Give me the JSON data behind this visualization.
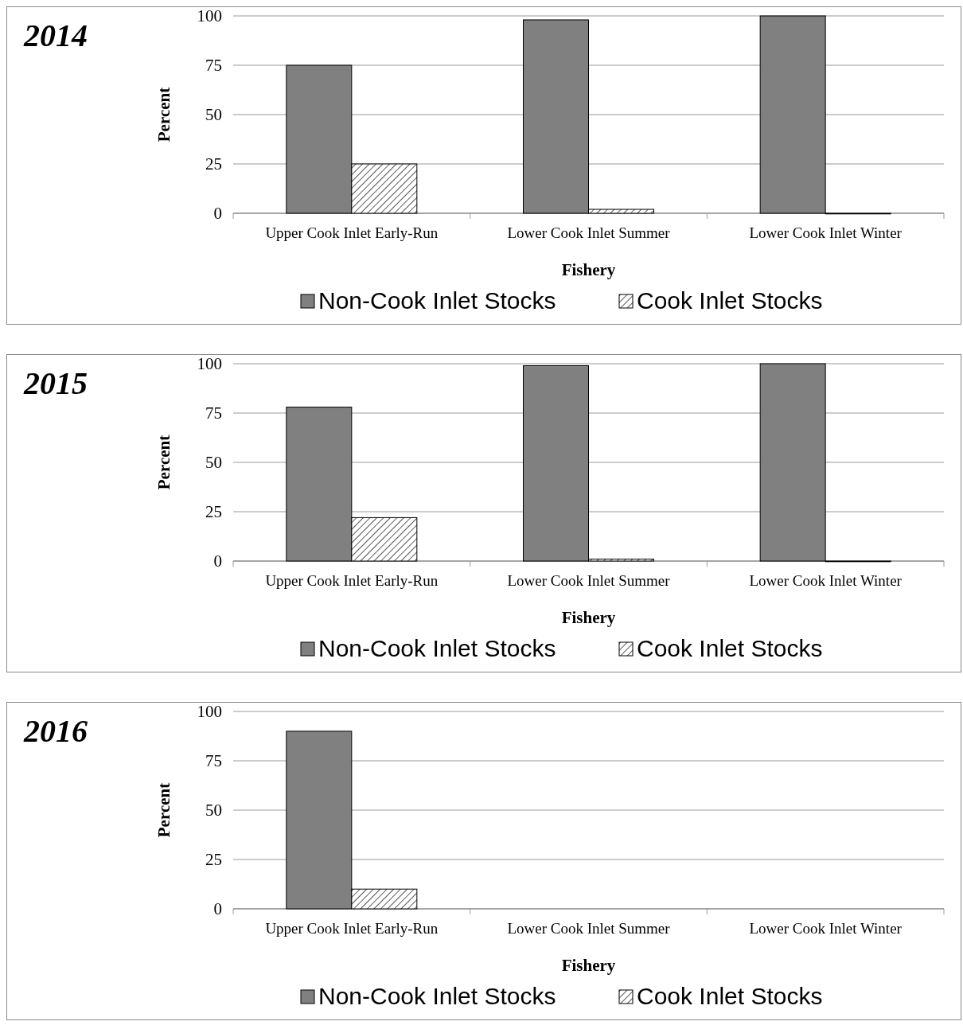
{
  "chart_data": [
    {
      "type": "bar",
      "title": "2014",
      "xlabel": "Fishery",
      "ylabel": "Percent",
      "categories": [
        "Upper Cook Inlet Early-Run",
        "Lower Cook Inlet Summer",
        "Lower Cook Inlet Winter"
      ],
      "ylim": [
        0,
        100
      ],
      "yticks": [
        0,
        25,
        50,
        75,
        100
      ],
      "grid": "y",
      "legend": "bottom",
      "series": [
        {
          "name": "Non-Cook Inlet Stocks",
          "color": "#808080",
          "values": [
            75,
            98,
            100
          ]
        },
        {
          "name": "Cook Inlet Stocks",
          "color": "#000000",
          "values": [
            25,
            2,
            0
          ]
        }
      ]
    },
    {
      "type": "bar",
      "title": "2015",
      "xlabel": "Fishery",
      "ylabel": "Percent",
      "categories": [
        "Upper Cook Inlet Early-Run",
        "Lower Cook Inlet Summer",
        "Lower Cook Inlet Winter"
      ],
      "ylim": [
        0,
        100
      ],
      "yticks": [
        0,
        25,
        50,
        75,
        100
      ],
      "grid": "y",
      "legend": "bottom",
      "series": [
        {
          "name": "Non-Cook Inlet Stocks",
          "color": "#808080",
          "values": [
            78,
            99,
            100
          ]
        },
        {
          "name": "Cook Inlet Stocks",
          "color": "#000000",
          "values": [
            22,
            1,
            0
          ]
        }
      ]
    },
    {
      "type": "bar",
      "title": "2016",
      "xlabel": "Fishery",
      "ylabel": "Percent",
      "categories": [
        "Upper Cook Inlet Early-Run",
        "Lower Cook Inlet Summer",
        "Lower Cook Inlet Winter"
      ],
      "ylim": [
        0,
        100
      ],
      "yticks": [
        0,
        25,
        50,
        75,
        100
      ],
      "grid": "y",
      "legend": "bottom",
      "series": [
        {
          "name": "Non-Cook Inlet Stocks",
          "color": "#808080",
          "values": [
            90,
            null,
            null
          ]
        },
        {
          "name": "Cook Inlet Stocks",
          "color": "#000000",
          "values": [
            10,
            null,
            null
          ]
        }
      ]
    }
  ]
}
